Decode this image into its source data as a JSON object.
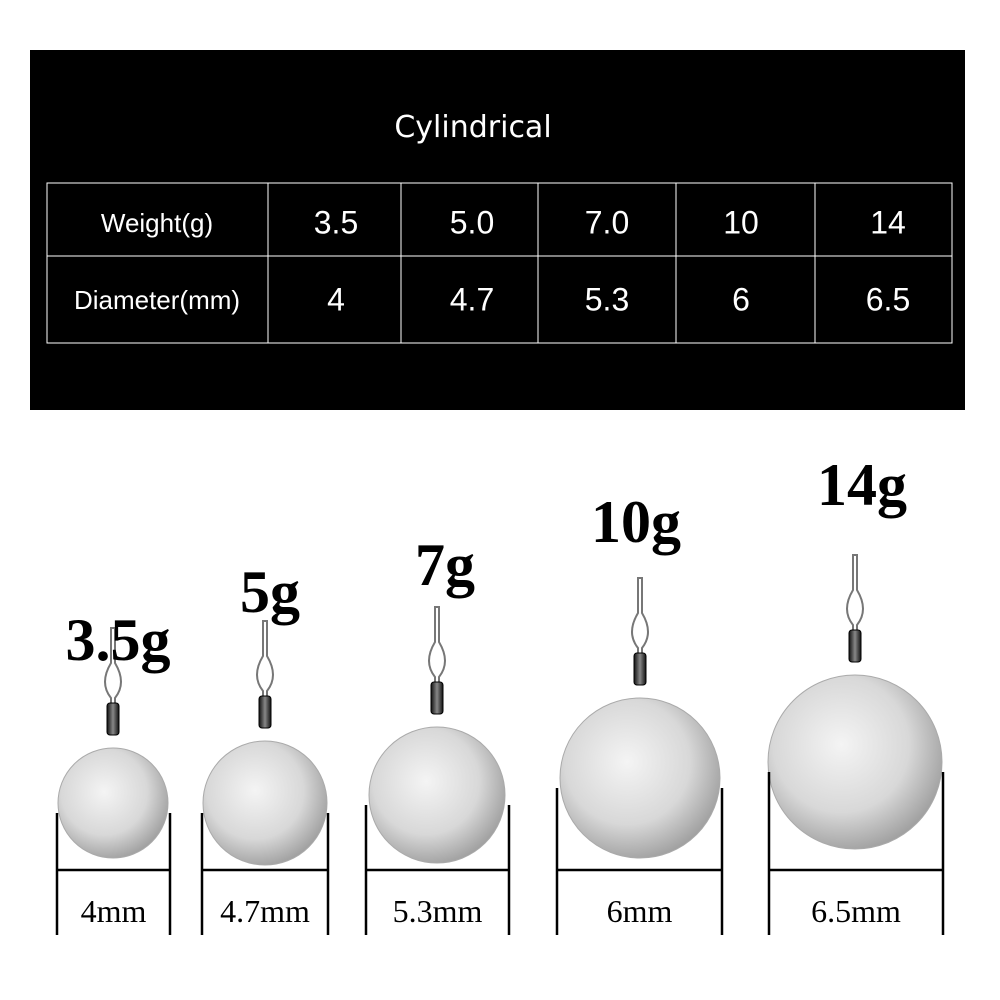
{
  "header": {
    "title": "Cylindrical"
  },
  "table": {
    "rows": [
      [
        "Weight(g)",
        "3.5",
        "5.0",
        "7.0",
        "10",
        "14"
      ],
      [
        "Diameter(mm)",
        "4",
        "4.7",
        "5.3",
        "6",
        "6.5"
      ]
    ]
  },
  "items": [
    {
      "weight": "3.5g",
      "diameter": "4mm"
    },
    {
      "weight": "5g",
      "diameter": "4.7mm"
    },
    {
      "weight": "7g",
      "diameter": "5.3mm"
    },
    {
      "weight": "10g",
      "diameter": "6mm"
    },
    {
      "weight": "14g",
      "diameter": "6.5mm"
    }
  ]
}
